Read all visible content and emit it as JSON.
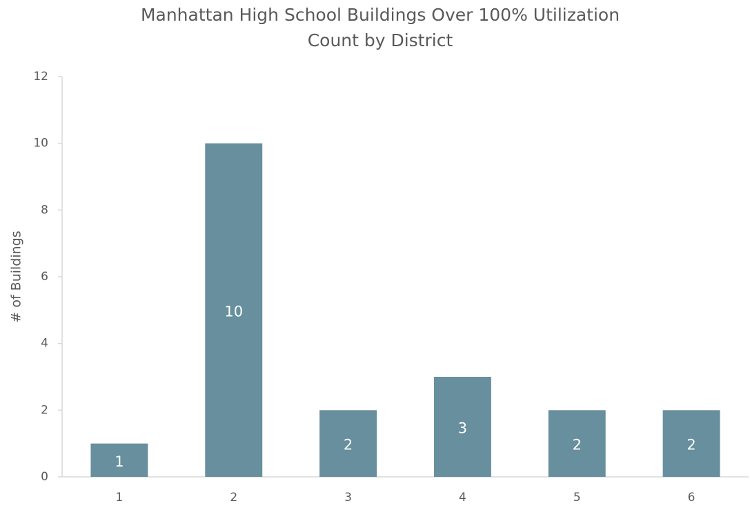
{
  "chart_data": {
    "type": "bar",
    "title": "Manhattan High School Buildings Over 100% Utilization",
    "subtitle": "Count by District",
    "y_label": "# of Buildings",
    "categories": [
      "1",
      "2",
      "3",
      "4",
      "5",
      "6"
    ],
    "values": [
      1,
      10,
      2,
      3,
      2,
      2
    ],
    "color": "#678f9e",
    "ylim": [
      0,
      12
    ],
    "yticks": [
      0,
      2,
      4,
      6,
      8,
      10,
      12
    ],
    "grid": false,
    "data_labels": true
  }
}
